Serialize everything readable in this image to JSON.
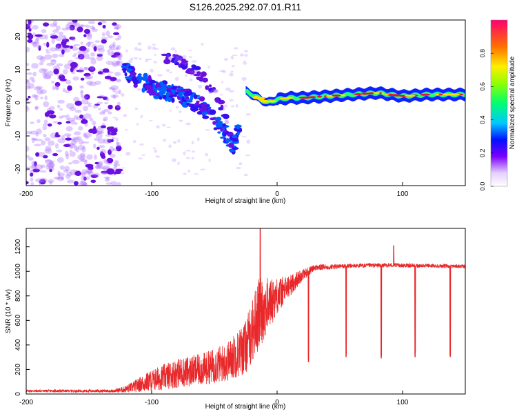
{
  "title": "S126.2025.292.07.01.R11",
  "colors": {
    "trace": "#e8282a",
    "scatter": "#6a10e0",
    "band_low": "#0030ff",
    "band_mid": "#00e060",
    "band_high": "#e81030",
    "frame": "#000000"
  },
  "chart_data": [
    {
      "type": "heatmap",
      "title": "",
      "xlabel": "Height of straight line (km)",
      "ylabel": "Frequency (Hz)",
      "xlim": [
        -200,
        150
      ],
      "ylim": [
        -25,
        25
      ],
      "xticks": [
        -200,
        -100,
        0,
        100
      ],
      "yticks": [
        20,
        10,
        0,
        -10,
        -20
      ],
      "colorbar": {
        "label": "Normalized spectral amplitude",
        "range": [
          0,
          1
        ],
        "ticks": [
          "0.0",
          "0.2",
          "0.4",
          "0.6",
          "0.8"
        ]
      },
      "features": [
        {
          "name": "noise-region",
          "x_range": [
            -200,
            -125
          ],
          "y_range": [
            -25,
            25
          ],
          "amplitude": 0.08
        },
        {
          "name": "multipath-arc",
          "points": [
            [
              -122,
              10
            ],
            [
              -110,
              7
            ],
            [
              -95,
              4
            ],
            [
              -80,
              3
            ],
            [
              -70,
              1
            ],
            [
              -60,
              -1
            ],
            [
              -50,
              -5
            ],
            [
              -40,
              -10
            ],
            [
              -35,
              -13
            ],
            [
              -30,
              -8
            ]
          ],
          "amplitude": 0.2
        },
        {
          "name": "secondary-arc",
          "points": [
            [
              -90,
              14
            ],
            [
              -75,
              12
            ],
            [
              -60,
              8
            ],
            [
              -48,
              2
            ],
            [
              -40,
              -5
            ]
          ],
          "amplitude": 0.12
        },
        {
          "name": "direct-signal",
          "points": [
            [
              -25,
              3.5
            ],
            [
              -15,
              1.5
            ],
            [
              -8,
              0
            ],
            [
              0,
              1
            ],
            [
              10,
              1.5
            ],
            [
              20,
              1.5
            ],
            [
              40,
              2
            ],
            [
              60,
              2.5
            ],
            [
              80,
              3
            ],
            [
              100,
              2
            ],
            [
              120,
              2.5
            ],
            [
              150,
              2.5
            ]
          ],
          "amplitude": 0.9
        }
      ]
    },
    {
      "type": "line",
      "title": "",
      "xlabel": "Height of straight line (km)",
      "ylabel": "SNR (10 * v/v)",
      "xlim": [
        -200,
        150
      ],
      "ylim": [
        0,
        1350
      ],
      "xticks": [
        -200,
        -100,
        0,
        100
      ],
      "yticks": [
        0,
        200,
        400,
        600,
        800,
        1000,
        1200
      ],
      "series": [
        {
          "name": "SNR",
          "envelope": [
            {
              "x": -200,
              "y": 25,
              "noise": 10
            },
            {
              "x": -130,
              "y": 25,
              "noise": 12
            },
            {
              "x": -120,
              "y": 40,
              "noise": 30
            },
            {
              "x": -100,
              "y": 110,
              "noise": 90
            },
            {
              "x": -80,
              "y": 170,
              "noise": 120
            },
            {
              "x": -60,
              "y": 200,
              "noise": 130
            },
            {
              "x": -40,
              "y": 260,
              "noise": 160
            },
            {
              "x": -25,
              "y": 380,
              "noise": 220
            },
            {
              "x": -15,
              "y": 650,
              "noise": 300
            },
            {
              "x": -10,
              "y": 700,
              "noise": 250
            },
            {
              "x": 0,
              "y": 800,
              "noise": 150
            },
            {
              "x": 10,
              "y": 880,
              "noise": 90
            },
            {
              "x": 20,
              "y": 970,
              "noise": 50
            },
            {
              "x": 30,
              "y": 1030,
              "noise": 25
            },
            {
              "x": 60,
              "y": 1045,
              "noise": 18
            },
            {
              "x": 90,
              "y": 1050,
              "noise": 18
            },
            {
              "x": 120,
              "y": 1045,
              "noise": 15
            },
            {
              "x": 150,
              "y": 1040,
              "noise": 15
            }
          ],
          "dips": [
            {
              "x": 25,
              "y": 260
            },
            {
              "x": 55,
              "y": 300
            },
            {
              "x": 83,
              "y": 290
            },
            {
              "x": 110,
              "y": 300
            },
            {
              "x": 138,
              "y": 300
            }
          ],
          "spikes": [
            {
              "x": -13.5,
              "y": 1350
            },
            {
              "x": 93,
              "y": 1210
            }
          ]
        }
      ]
    }
  ]
}
